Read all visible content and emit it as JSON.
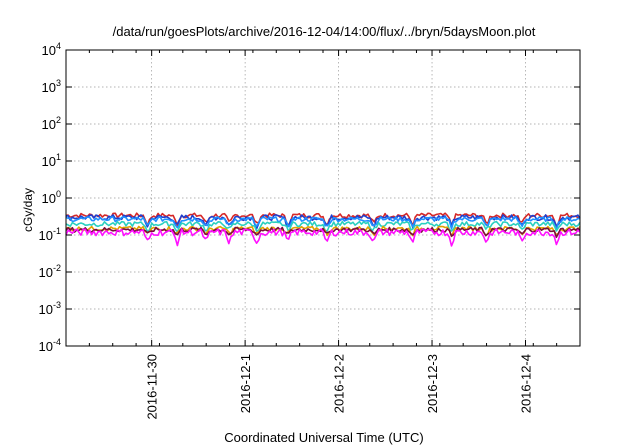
{
  "chart_data": {
    "type": "line",
    "title": "/data/run/goesPlots/archive/2016-12-04/14:00/flux/../bryn/5daysMoon.plot",
    "xlabel": "Coordinated Universal Time (UTC)",
    "ylabel": "cGy/day",
    "y_scale": "log",
    "ylim": [
      0.0001,
      10000
    ],
    "y_ticks": [
      {
        "value": 0.0001,
        "base": "10",
        "exp": "-4"
      },
      {
        "value": 0.001,
        "base": "10",
        "exp": "-3"
      },
      {
        "value": 0.01,
        "base": "10",
        "exp": "-2"
      },
      {
        "value": 0.1,
        "base": "10",
        "exp": "-1"
      },
      {
        "value": 1,
        "base": "10",
        "exp": "0"
      },
      {
        "value": 10,
        "base": "10",
        "exp": "1"
      },
      {
        "value": 100,
        "base": "10",
        "exp": "2"
      },
      {
        "value": 1000,
        "base": "10",
        "exp": "3"
      },
      {
        "value": 10000,
        "base": "10",
        "exp": "4"
      }
    ],
    "xlim": [
      "2016-11-29 02:00",
      "2016-12-04 14:00"
    ],
    "x_ticks": [
      {
        "value": "2016-11-30 00:00",
        "label": "2016-11-30"
      },
      {
        "value": "2016-12-01 00:00",
        "label": "2016-12-1"
      },
      {
        "value": "2016-12-02 00:00",
        "label": "2016-12-2"
      },
      {
        "value": "2016-12-03 00:00",
        "label": "2016-12-3"
      },
      {
        "value": "2016-12-04 00:00",
        "label": "2016-12-4"
      }
    ],
    "grid": true,
    "legend": false,
    "dips": [
      "2016-11-29 23:00",
      "2016-11-30 06:30",
      "2016-11-30 14:00",
      "2016-11-30 20:00",
      "2016-12-01 03:00",
      "2016-12-01 11:00",
      "2016-12-01 21:00",
      "2016-12-02 09:00",
      "2016-12-02 19:00",
      "2016-12-03 05:00",
      "2016-12-03 14:00",
      "2016-12-03 23:00",
      "2016-12-04 08:00"
    ],
    "series": [
      {
        "color": "#d62828",
        "level": 0.34,
        "spread": 0.05,
        "dip_depth": 0.45
      },
      {
        "color": "#1f3fcf",
        "level": 0.3,
        "spread": 0.05,
        "dip_depth": 0.45
      },
      {
        "color": "#1e90ff",
        "level": 0.27,
        "spread": 0.04,
        "dip_depth": 0.4
      },
      {
        "color": "#2ad0c0",
        "level": 0.2,
        "spread": 0.03,
        "dip_depth": 0.35
      },
      {
        "color": "#e0a000",
        "level": 0.15,
        "spread": 0.02,
        "dip_depth": 0.3
      },
      {
        "color": "#7a0d3c",
        "level": 0.14,
        "spread": 0.02,
        "dip_depth": 0.3
      },
      {
        "color": "#ff10ff",
        "level": 0.12,
        "spread": 0.025,
        "dip_depth": 0.5
      }
    ]
  }
}
